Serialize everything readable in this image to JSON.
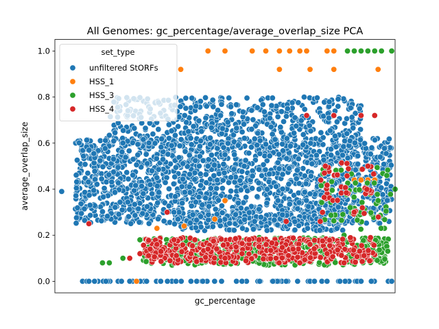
{
  "chart_data": {
    "type": "scatter",
    "title": "All Genomes: gc_percentage/average_overlap_size PCA",
    "xlabel": "gc_percentage",
    "ylabel": "average_overlap_size",
    "xlim": [
      0.0,
      1.0
    ],
    "ylim": [
      -0.05,
      1.05
    ],
    "x_ticks_shown": false,
    "yticks": [
      0.0,
      0.2,
      0.4,
      0.6,
      0.8,
      1.0
    ],
    "ytick_labels": [
      "0.0",
      "0.2",
      "0.4",
      "0.6",
      "0.8",
      "1.0"
    ],
    "grid": false,
    "legend": {
      "title": "set_type",
      "position": "top-left",
      "entries": [
        "unfiltered StORFs",
        "HSS_1",
        "HSS_3",
        "HSS_4"
      ]
    },
    "series": [
      {
        "name": "unfiltered StORFs",
        "color": "#1f77b4",
        "x": [
          0.02,
          0.1,
          0.15,
          0.22,
          0.4,
          0.55,
          0.68,
          0.8,
          0.9,
          0.99,
          0.3,
          0.45,
          0.6,
          0.75,
          0.88,
          0.2,
          0.5,
          0.35
        ],
        "y": [
          0.39,
          0.0,
          0.0,
          0.0,
          0.0,
          0.0,
          0.0,
          0.0,
          0.0,
          0.0,
          0.45,
          0.5,
          0.4,
          0.38,
          0.35,
          0.6,
          0.55,
          0.3
        ]
      },
      {
        "name": "HSS_1",
        "color": "#ff7f0e",
        "x": [
          0.37,
          0.45,
          0.5,
          0.58,
          0.62,
          0.66,
          0.69,
          0.72,
          0.74,
          0.8,
          0.82,
          0.95,
          0.38,
          0.66,
          0.75,
          0.82,
          0.95,
          0.5,
          0.88,
          0.9,
          0.92,
          0.94,
          0.3,
          0.24,
          0.47
        ],
        "y": [
          0.92,
          1.0,
          1.0,
          1.0,
          1.0,
          1.0,
          1.0,
          1.0,
          1.0,
          1.0,
          1.0,
          0.92,
          0.24,
          0.92,
          0.92,
          0.92,
          0.92,
          0.35,
          0.44,
          0.44,
          0.44,
          0.44,
          0.23,
          0.0,
          0.27
        ]
      },
      {
        "name": "HSS_3",
        "color": "#2ca02c",
        "x": [
          0.86,
          0.88,
          0.9,
          0.92,
          0.94,
          0.96,
          0.99,
          0.25,
          0.3,
          0.35,
          0.4,
          0.45,
          0.5,
          0.55,
          0.6,
          0.65,
          0.7,
          0.75,
          0.8,
          0.85,
          0.9,
          0.95,
          1.0,
          0.2,
          0.16,
          0.14
        ],
        "y": [
          1.0,
          1.0,
          1.0,
          1.0,
          1.0,
          1.0,
          1.0,
          0.18,
          0.18,
          0.18,
          0.18,
          0.15,
          0.15,
          0.1,
          0.1,
          0.1,
          0.15,
          0.18,
          0.18,
          0.2,
          0.3,
          0.35,
          0.4,
          0.1,
          0.08,
          0.08
        ]
      },
      {
        "name": "HSS_4",
        "color": "#d62728",
        "x": [
          0.3,
          0.35,
          0.4,
          0.45,
          0.5,
          0.55,
          0.6,
          0.65,
          0.7,
          0.75,
          0.8,
          0.85,
          0.88,
          0.92,
          0.94,
          0.22,
          0.25,
          0.28,
          0.68,
          0.74,
          0.78,
          0.1,
          0.9,
          0.33,
          0.6,
          0.72,
          0.82
        ],
        "y": [
          0.16,
          0.18,
          0.12,
          0.14,
          0.1,
          0.12,
          0.15,
          0.1,
          0.14,
          0.16,
          0.12,
          0.08,
          0.3,
          0.5,
          0.72,
          0.1,
          0.12,
          0.14,
          0.26,
          0.72,
          0.26,
          0.25,
          0.72,
          0.3,
          0.18,
          0.08,
          0.72
        ]
      }
    ],
    "clusters": [
      {
        "series": "unfiltered StORFs",
        "x": [
          0.06,
          0.99
        ],
        "y": [
          0.25,
          0.62
        ],
        "n": 1600,
        "seed": 1
      },
      {
        "series": "unfiltered StORFs",
        "x": [
          0.16,
          0.9
        ],
        "y": [
          0.58,
          0.8
        ],
        "n": 500,
        "seed": 2
      },
      {
        "series": "unfiltered StORFs",
        "x": [
          0.35,
          0.85
        ],
        "y": [
          0.22,
          0.3
        ],
        "n": 200,
        "seed": 3
      },
      {
        "series": "unfiltered StORFs",
        "x": [
          0.08,
          0.99
        ],
        "y": [
          0.0,
          0.0
        ],
        "n": 70,
        "seed": 4
      },
      {
        "series": "HSS_3",
        "x": [
          0.26,
          0.98
        ],
        "y": [
          0.07,
          0.19
        ],
        "n": 450,
        "seed": 5
      },
      {
        "series": "HSS_4",
        "x": [
          0.26,
          0.94
        ],
        "y": [
          0.08,
          0.19
        ],
        "n": 380,
        "seed": 6
      },
      {
        "series": "HSS_3",
        "x": [
          0.78,
          0.99
        ],
        "y": [
          0.22,
          0.5
        ],
        "n": 60,
        "seed": 7
      },
      {
        "series": "HSS_4",
        "x": [
          0.78,
          0.96
        ],
        "y": [
          0.25,
          0.52
        ],
        "n": 40,
        "seed": 8
      }
    ]
  }
}
